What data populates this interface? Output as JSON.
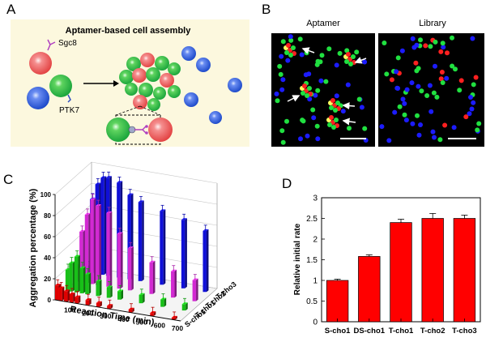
{
  "panels": {
    "A": {
      "letter": "A",
      "title": "Aptamer-based cell assembly",
      "labels": {
        "sgc8": "Sgc8",
        "ptk7": "PTK7"
      }
    },
    "B": {
      "letter": "B",
      "subtitles": [
        "Aptamer",
        "Library"
      ]
    },
    "C": {
      "letter": "C"
    },
    "D": {
      "letter": "D"
    }
  },
  "chart_data": [
    {
      "type": "bar3d",
      "panel": "C",
      "ylabel": "Aggregation percentage (%)",
      "xlabel": "Reaction Time (min)",
      "ylim": [
        0,
        100
      ],
      "yticks": [
        0,
        20,
        40,
        60,
        80,
        100
      ],
      "xticks": [
        "100",
        "200",
        "300",
        "400",
        "500",
        "600",
        "700"
      ],
      "x_minutes": [
        10,
        30,
        60,
        90,
        120,
        180,
        240,
        300,
        420,
        540,
        660
      ],
      "series": [
        {
          "name": "S-cho1",
          "color": "#e00000",
          "values": [
            14,
            12,
            10,
            8,
            6,
            5,
            4,
            3,
            3,
            3,
            2
          ]
        },
        {
          "name": "T-cho1",
          "color": "#18c018",
          "values": [
            20,
            27,
            34,
            24,
            19,
            14,
            10,
            8,
            8,
            7,
            6
          ]
        },
        {
          "name": "T-cho2",
          "color": "#d22ad2",
          "values": [
            15,
            48,
            65,
            80,
            75,
            70,
            52,
            40,
            30,
            25,
            20
          ]
        },
        {
          "name": "T-cho3",
          "color": "#1010d8",
          "values": [
            5,
            70,
            85,
            92,
            93,
            90,
            80,
            75,
            70,
            65,
            58
          ]
        }
      ]
    },
    {
      "type": "bar",
      "panel": "D",
      "categories": [
        "S-cho1",
        "DS-cho1",
        "T-cho1",
        "T-cho2",
        "T-cho3"
      ],
      "values": [
        1.0,
        1.58,
        2.4,
        2.5,
        2.5
      ],
      "errors": [
        0.03,
        0.04,
        0.08,
        0.12,
        0.08
      ],
      "ylabel": "Relative initial rate",
      "ylim": [
        0,
        3
      ],
      "yticks": [
        "0",
        "0.5",
        "1",
        "1.5",
        "2",
        "2.5",
        "3"
      ],
      "color": "#ff0000"
    }
  ]
}
